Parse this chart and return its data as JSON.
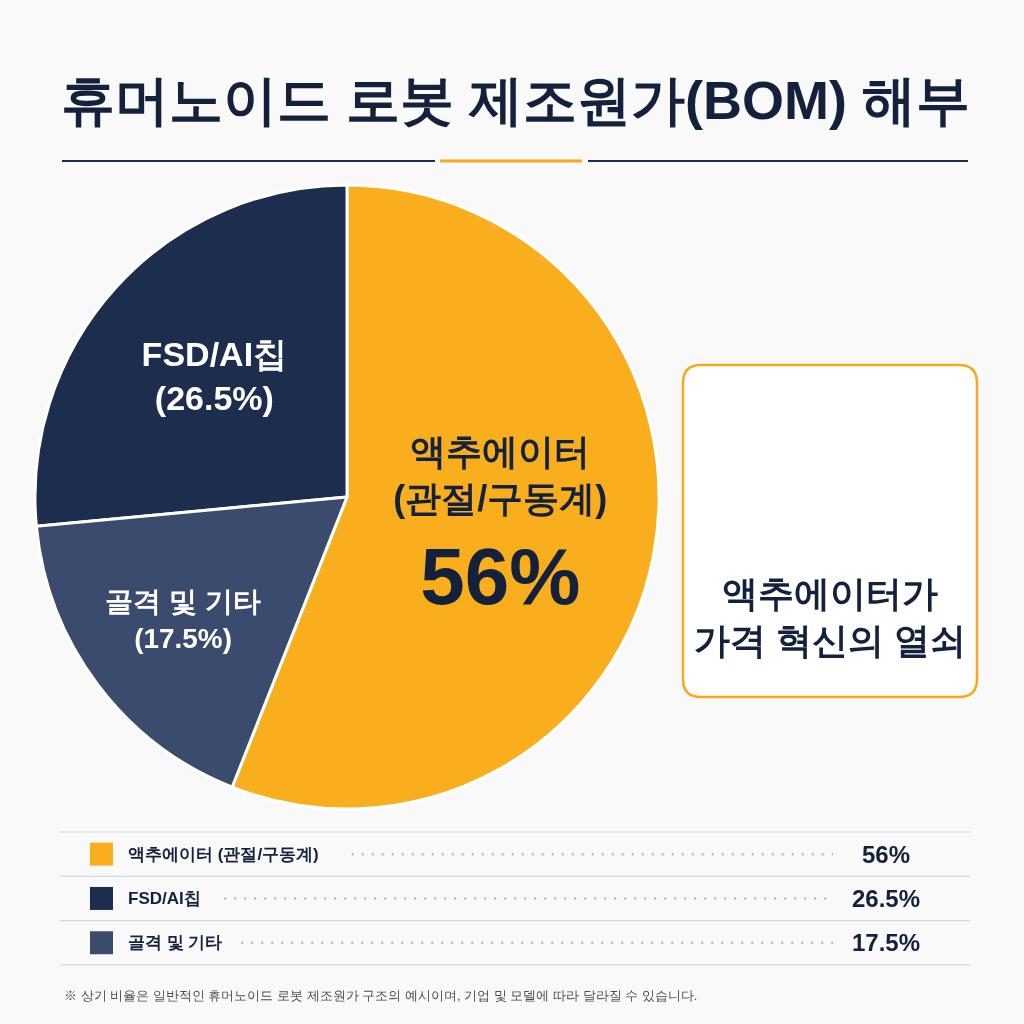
{
  "chart_data": {
    "type": "pie",
    "title": "휴머노이드 로봇 제조원가(BOM) 해부",
    "categories": [
      "액추에이터 (관절/구동계)",
      "FSD/AI칩",
      "골격 및 기타"
    ],
    "values": [
      56,
      26.5,
      17.5
    ],
    "colors": [
      "#f9ae1e",
      "#1d2d4d",
      "#3a4b6e"
    ],
    "value_labels": [
      "56%",
      "(26.5%)",
      "(17.5%)"
    ],
    "legend": "bottom",
    "annotations": [
      "56%",
      "26.5%",
      "17.5%",
      "액추에이터가 가격 혁신의 열쇠",
      "※ 상기 비율은 일반적인 휴머노이드 로봇 제조원가 구조의 예시이며, 기업 및 모델에 따라 달라질 수 있습니다."
    ]
  }
}
